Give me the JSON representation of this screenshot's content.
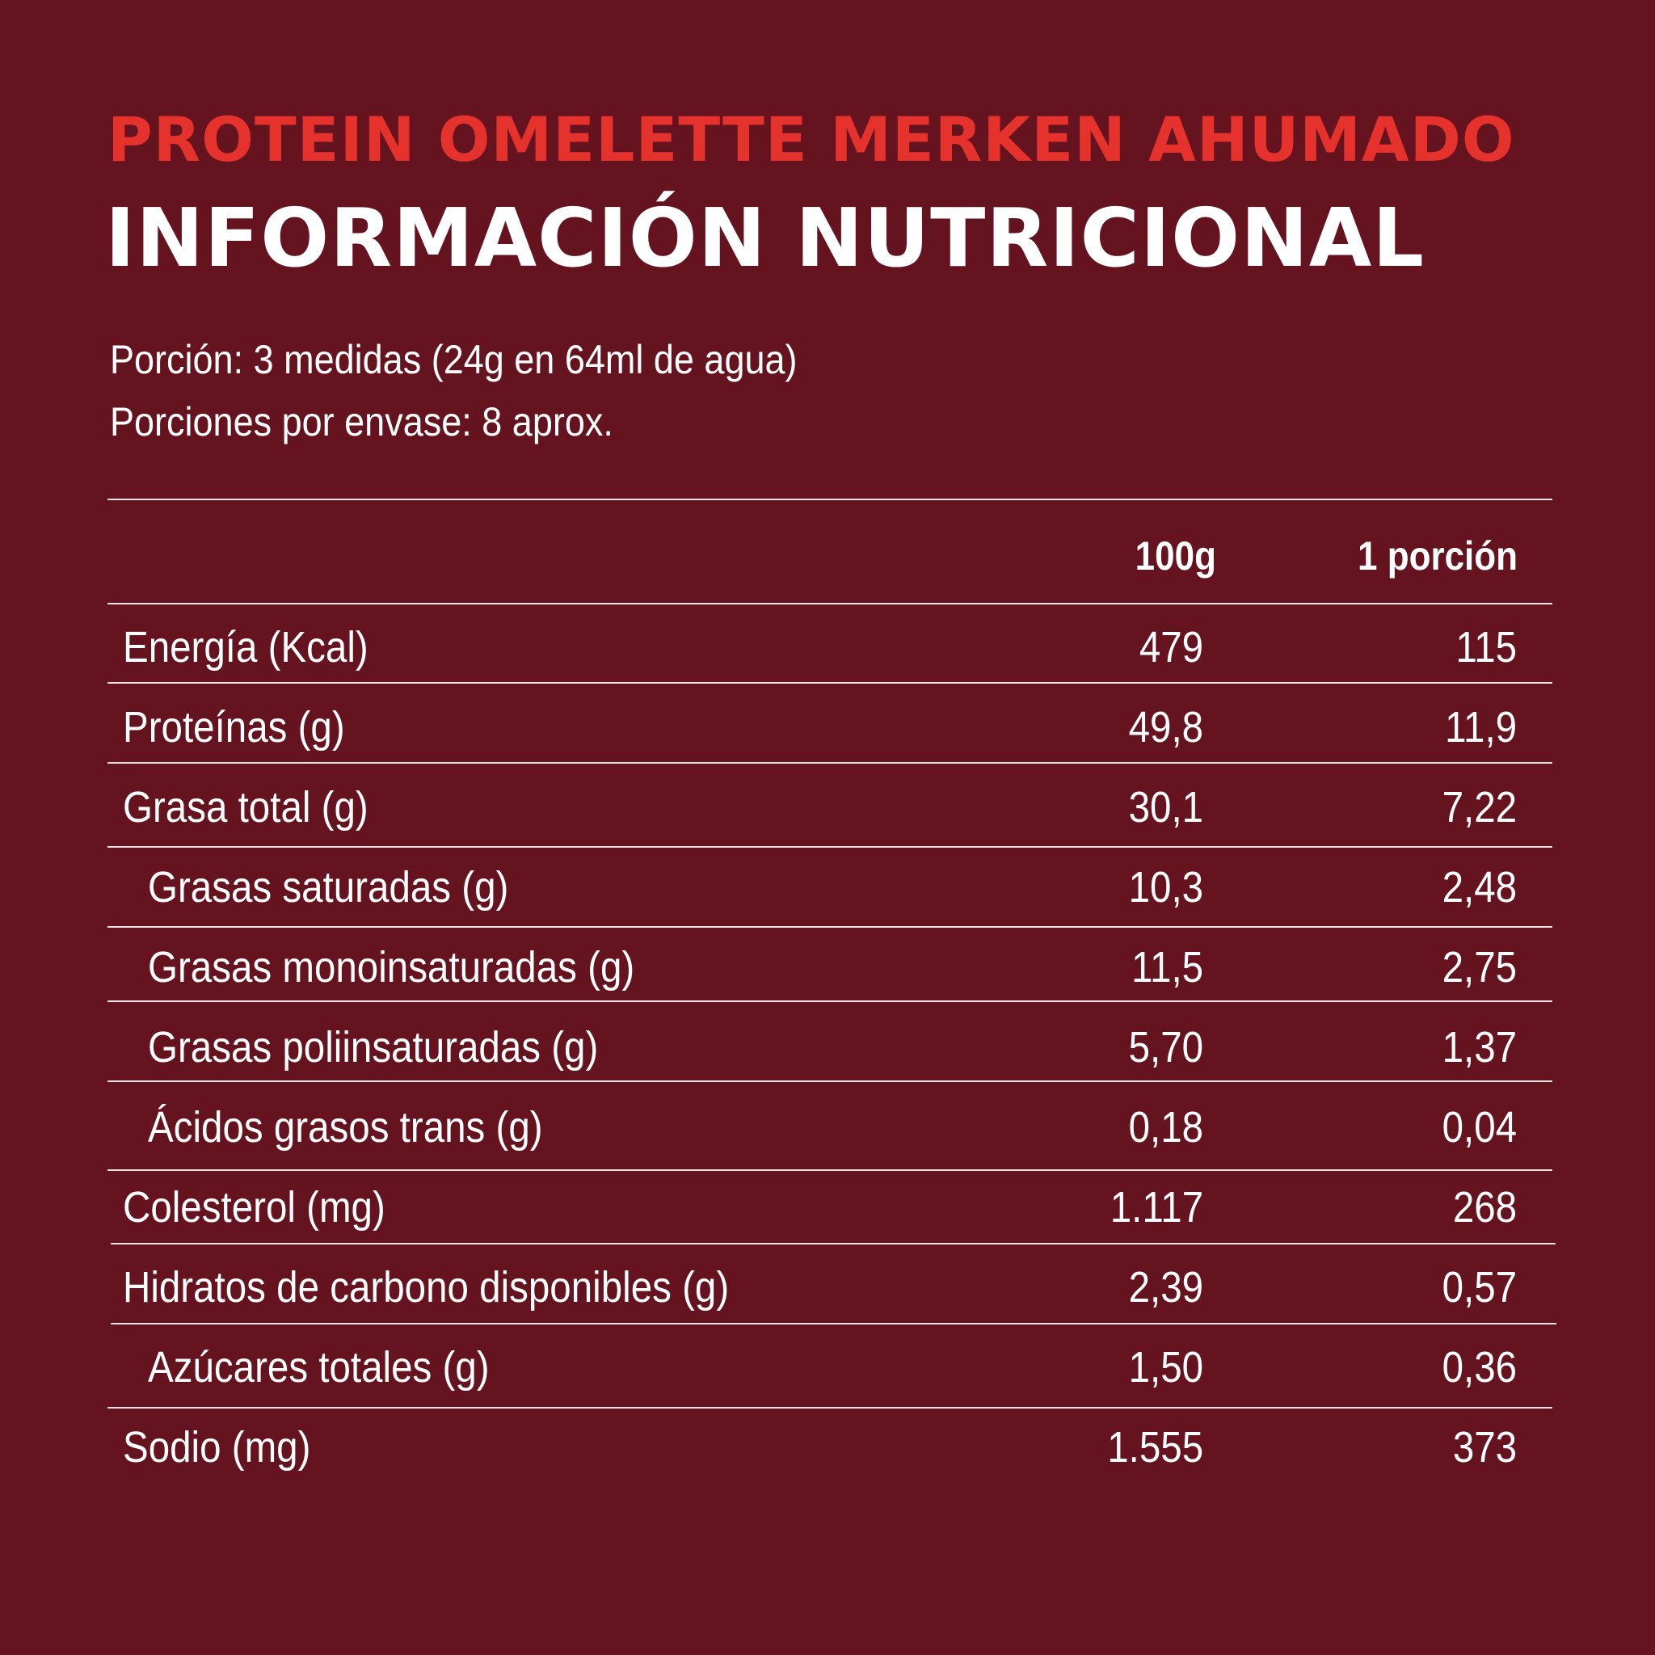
{
  "product_title": "PROTEIN OMELETTE MERKEN AHUMADO",
  "main_title": "INFORMACIÓN NUTRICIONAL",
  "serving": {
    "portion": "Porción: 3 medidas (24g en 64ml de agua)",
    "per_package": "Porciones por envase: 8 aprox."
  },
  "table": {
    "headers": {
      "per_100g": "100g",
      "per_portion": "1 porción"
    },
    "rows": [
      {
        "label": "Energía (Kcal)",
        "per_100g": "479",
        "per_portion": "115"
      },
      {
        "label": "Proteínas (g)",
        "per_100g": "49,8",
        "per_portion": "11,9"
      },
      {
        "label": "Grasa total (g)",
        "per_100g": "30,1",
        "per_portion": "7,22"
      },
      {
        "label": "Grasas saturadas (g)",
        "per_100g": "10,3",
        "per_portion": "2,48"
      },
      {
        "label": "Grasas monoinsaturadas (g)",
        "per_100g": "11,5",
        "per_portion": "2,75"
      },
      {
        "label": "Grasas poliinsaturadas (g)",
        "per_100g": "5,70",
        "per_portion": "1,37"
      },
      {
        "label": "Ácidos grasos trans (g)",
        "per_100g": "0,18",
        "per_portion": "0,04"
      },
      {
        "label": "Colesterol (mg)",
        "per_100g": "1.117",
        "per_portion": "268"
      },
      {
        "label": "Hidratos de carbono disponibles (g)",
        "per_100g": "2,39",
        "per_portion": "0,57"
      },
      {
        "label": "Azúcares totales (g)",
        "per_100g": "1,50",
        "per_portion": "0,36"
      },
      {
        "label": "Sodio (mg)",
        "per_100g": "1.555",
        "per_portion": "373"
      }
    ]
  },
  "colors": {
    "background": "#661320",
    "title_red": "#e5322d",
    "text": "#ffffff"
  }
}
